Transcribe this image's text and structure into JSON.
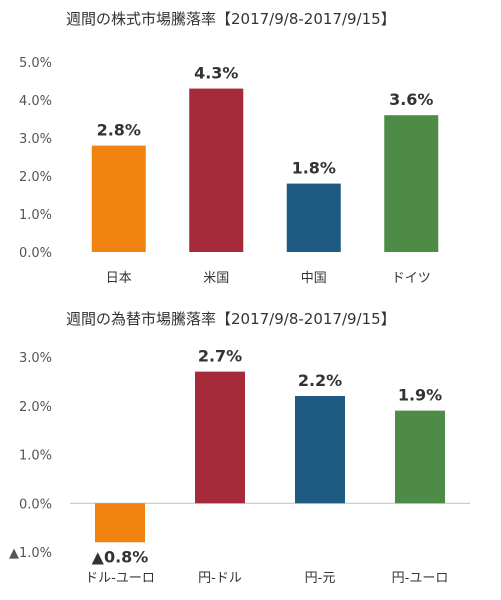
{
  "chart_data": [
    {
      "type": "bar",
      "title": "週間の株式市場騰落率【2017/9/8-2017/9/15】",
      "categories": [
        "日本",
        "米国",
        "中国",
        "ドイツ"
      ],
      "values": [
        2.8,
        4.3,
        1.8,
        3.6
      ],
      "value_labels": [
        "2.8%",
        "4.3%",
        "1.8%",
        "3.6%"
      ],
      "colors": [
        "#F0820F",
        "#A52A3A",
        "#1E5A82",
        "#4E8B46"
      ],
      "ylim": [
        0,
        5
      ],
      "yticks": [
        0,
        1,
        2,
        3,
        4,
        5
      ],
      "ytick_labels": [
        "0.0%",
        "1.0%",
        "2.0%",
        "3.0%",
        "4.0%",
        "5.0%"
      ],
      "grid": false
    },
    {
      "type": "bar",
      "title": "週間の為替市場騰落率【2017/9/8-2017/9/15】",
      "categories": [
        "ドル-ユーロ",
        "円-ドル",
        "円-元",
        "円-ユーロ"
      ],
      "values": [
        -0.8,
        2.7,
        2.2,
        1.9
      ],
      "value_labels": [
        "▲0.8%",
        "2.7%",
        "2.2%",
        "1.9%"
      ],
      "colors": [
        "#F0820F",
        "#A52A3A",
        "#1E5A82",
        "#4E8B46"
      ],
      "negative_label_color": "#E0201F",
      "ylim": [
        -1,
        3
      ],
      "yticks": [
        -1,
        0,
        1,
        2,
        3
      ],
      "ytick_labels": [
        "▲1.0%",
        "0.0%",
        "1.0%",
        "2.0%",
        "3.0%"
      ],
      "grid": false
    }
  ]
}
